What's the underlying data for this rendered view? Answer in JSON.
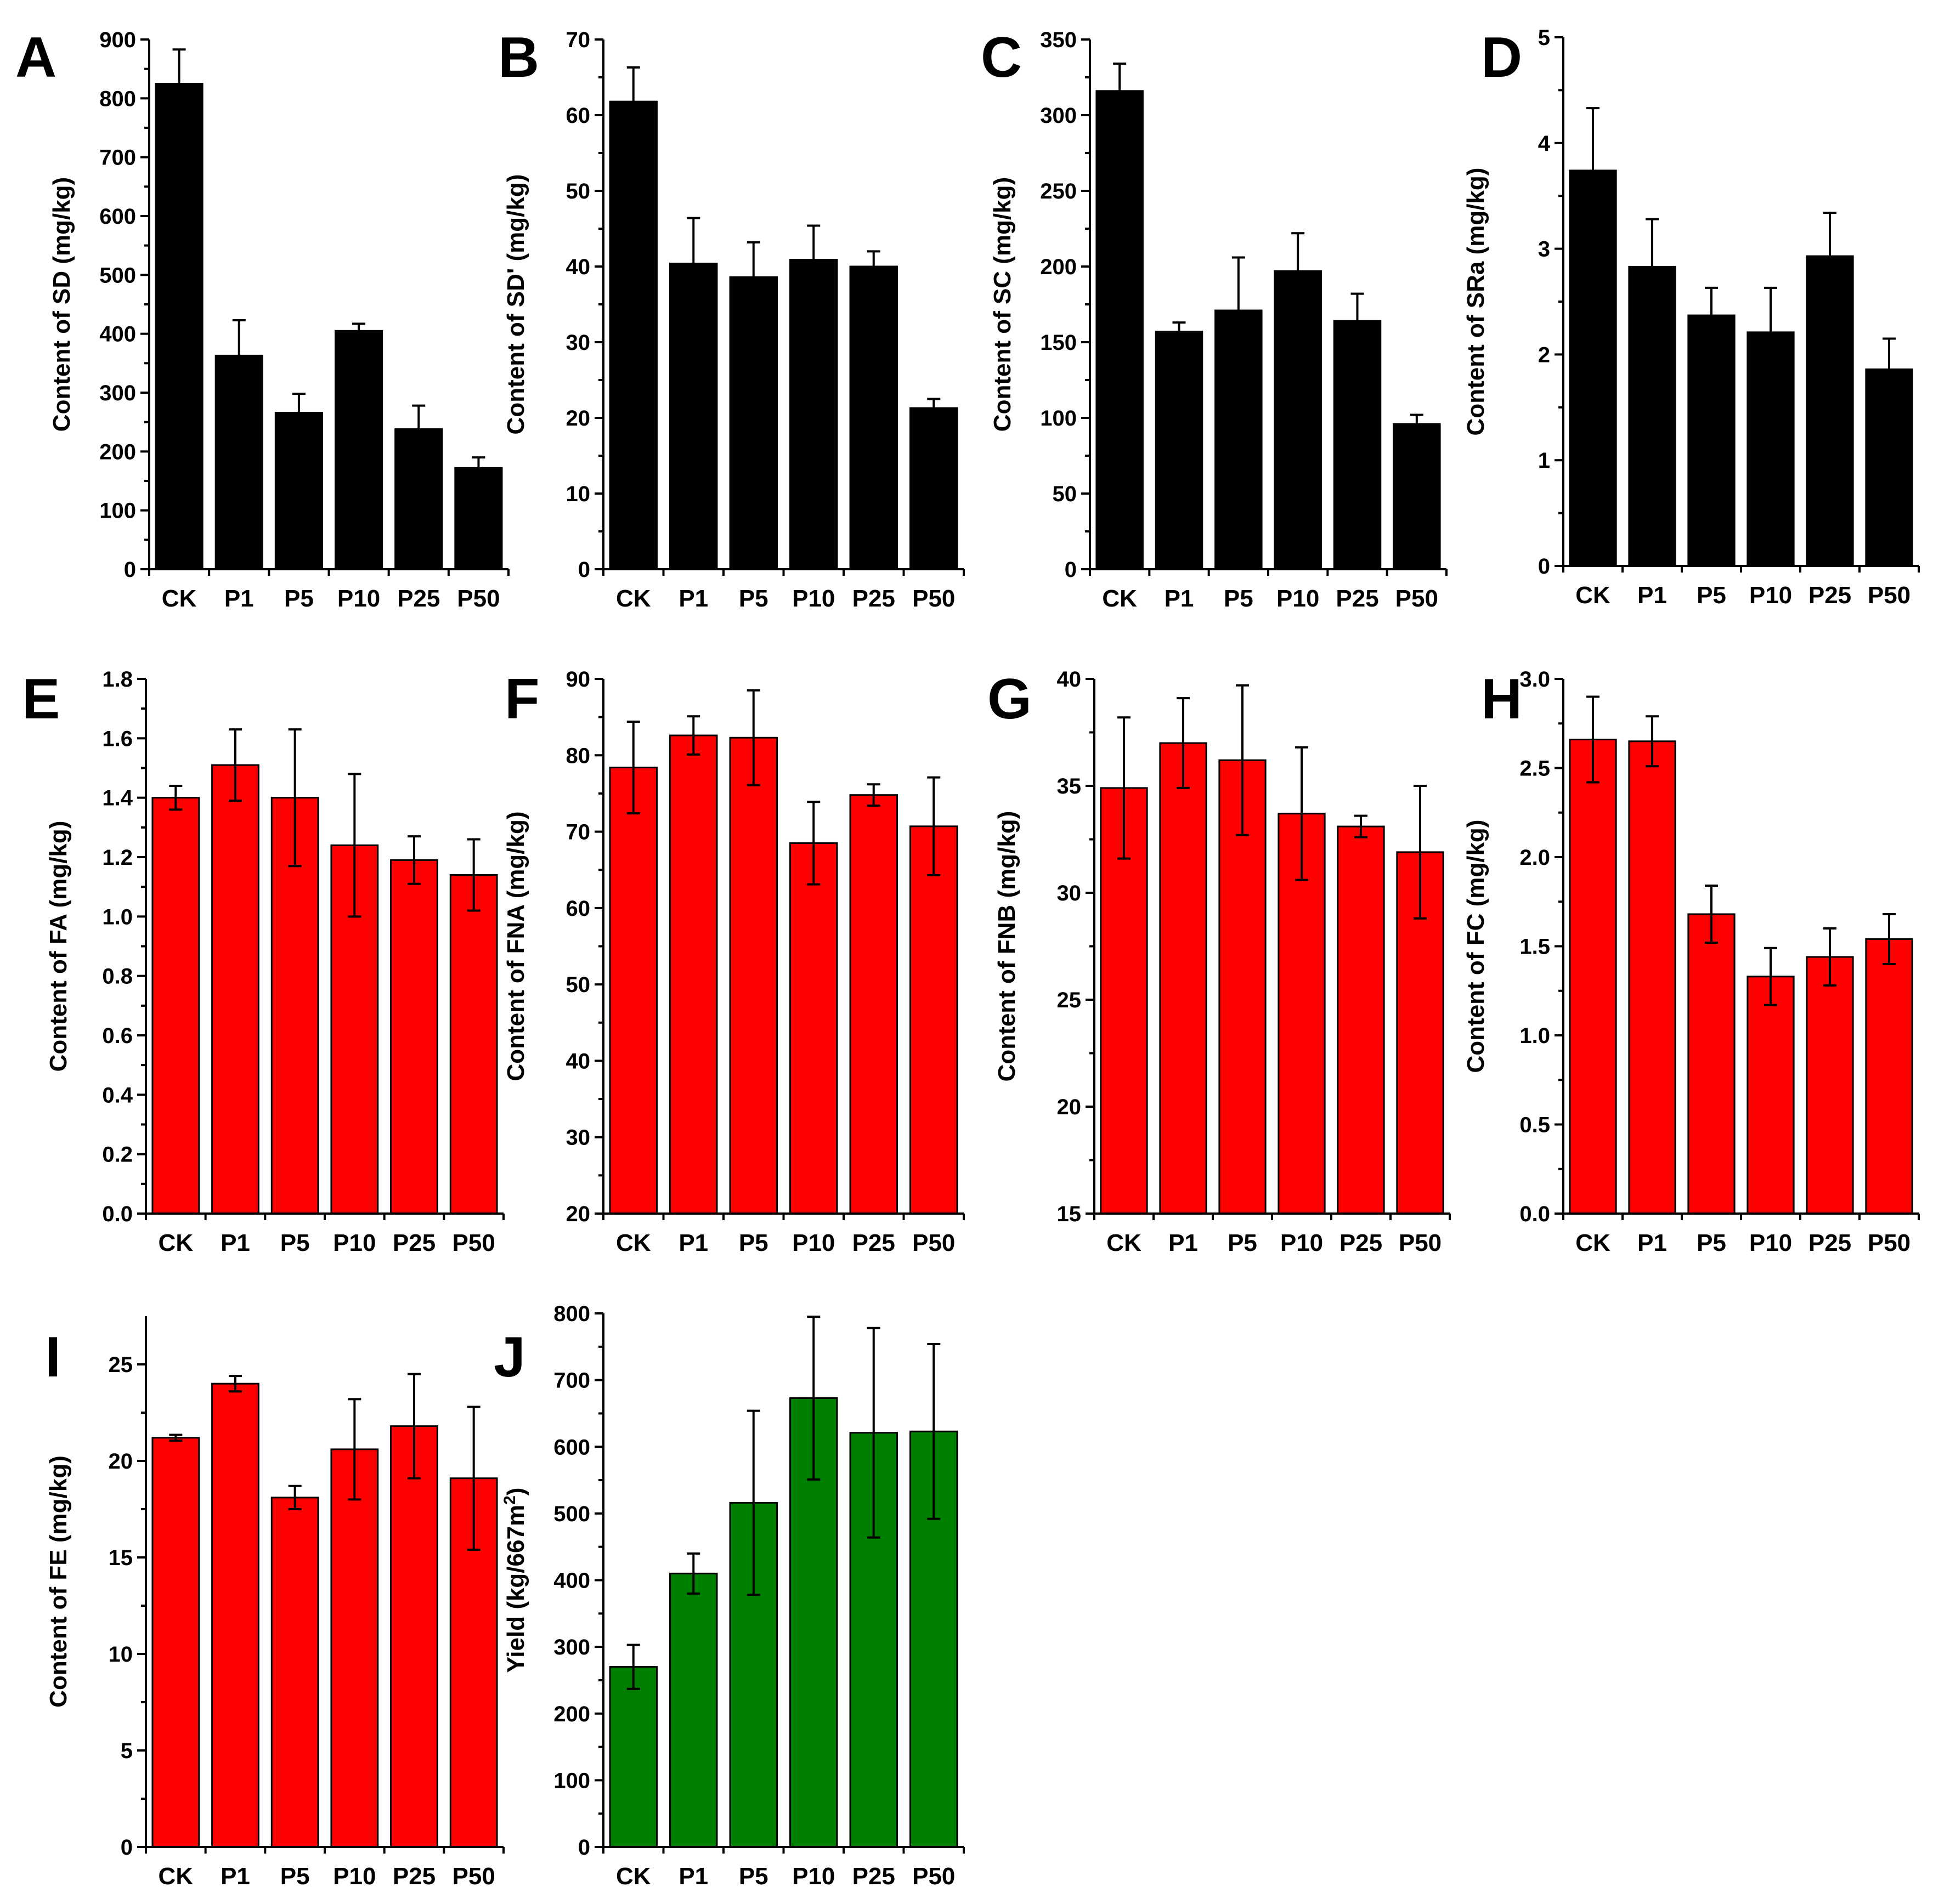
{
  "chart_data": [
    {
      "type": "bar",
      "panel": "A",
      "color": "#000000",
      "ylabel": "Content of SD (mg/kg)",
      "categories": [
        "CK",
        "P1",
        "P5",
        "P10",
        "P25",
        "P50"
      ],
      "values": [
        825,
        363,
        266,
        405,
        238,
        172
      ],
      "errors": [
        58,
        60,
        32,
        12,
        40,
        18
      ],
      "ylim": [
        0,
        900
      ],
      "yticks": [
        "0",
        "100",
        "200",
        "300",
        "400",
        "500",
        "600",
        "700",
        "800",
        "900"
      ]
    },
    {
      "type": "bar",
      "panel": "B",
      "color": "#000000",
      "ylabel": "Content of SD' (mg/kg)",
      "categories": [
        "CK",
        "P1",
        "P5",
        "P10",
        "P25",
        "P50"
      ],
      "values": [
        61.8,
        40.4,
        38.6,
        40.9,
        40.0,
        21.3
      ],
      "errors": [
        4.5,
        6.0,
        4.6,
        4.5,
        2.0,
        1.2
      ],
      "ylim": [
        0,
        70
      ],
      "yticks": [
        "0",
        "10",
        "20",
        "30",
        "40",
        "50",
        "60",
        "70"
      ]
    },
    {
      "type": "bar",
      "panel": "C",
      "color": "#000000",
      "ylabel": "Content of SC (mg/kg)",
      "categories": [
        "CK",
        "P1",
        "P5",
        "P10",
        "P25",
        "P50"
      ],
      "values": [
        316,
        157,
        171,
        197,
        164,
        96
      ],
      "errors": [
        18,
        6,
        35,
        25,
        18,
        6
      ],
      "ylim": [
        0,
        350
      ],
      "yticks": [
        "0",
        "50",
        "100",
        "150",
        "200",
        "250",
        "300",
        "350"
      ]
    },
    {
      "type": "bar",
      "panel": "D",
      "color": "#000000",
      "ylabel": "Content of SRa (mg/kg)",
      "categories": [
        "CK",
        "P1",
        "P5",
        "P10",
        "P25",
        "P50"
      ],
      "values": [
        3.74,
        2.83,
        2.37,
        2.21,
        2.93,
        1.86
      ],
      "errors": [
        0.59,
        0.45,
        0.26,
        0.42,
        0.41,
        0.29
      ],
      "ylim": [
        0,
        5
      ],
      "yticks": [
        "0",
        "1",
        "2",
        "3",
        "4",
        "5"
      ]
    },
    {
      "type": "bar",
      "panel": "E",
      "color": "#ff0000",
      "ylabel": "Content of FA (mg/kg)",
      "categories": [
        "CK",
        "P1",
        "P5",
        "P10",
        "P25",
        "P50"
      ],
      "values": [
        1.4,
        1.51,
        1.4,
        1.24,
        1.19,
        1.14
      ],
      "errors": [
        0.04,
        0.12,
        0.23,
        0.24,
        0.08,
        0.12
      ],
      "ylim": [
        0,
        1.8
      ],
      "yticks": [
        "0.0",
        "0.2",
        "0.4",
        "0.6",
        "0.8",
        "1.0",
        "1.2",
        "1.4",
        "1.6",
        "1.8"
      ]
    },
    {
      "type": "bar",
      "panel": "F",
      "color": "#ff0000",
      "ylabel": "Content of FNA (mg/kg)",
      "categories": [
        "CK",
        "P1",
        "P5",
        "P10",
        "P25",
        "P50"
      ],
      "values": [
        78.4,
        82.6,
        82.3,
        68.5,
        74.8,
        70.7
      ],
      "errors": [
        6.0,
        2.5,
        6.2,
        5.4,
        1.4,
        6.4
      ],
      "ylim": [
        20,
        90
      ],
      "yticks": [
        "20",
        "30",
        "40",
        "50",
        "60",
        "70",
        "80",
        "90"
      ]
    },
    {
      "type": "bar",
      "panel": "G",
      "color": "#ff0000",
      "ylabel": "Content of FNB (mg/kg)",
      "categories": [
        "CK",
        "P1",
        "P5",
        "P10",
        "P25",
        "P50"
      ],
      "values": [
        34.9,
        37.0,
        36.2,
        33.7,
        33.1,
        31.9
      ],
      "errors": [
        3.3,
        2.1,
        3.5,
        3.1,
        0.5,
        3.1
      ],
      "ylim": [
        15,
        40
      ],
      "yticks": [
        "15",
        "20",
        "25",
        "30",
        "35",
        "40"
      ]
    },
    {
      "type": "bar",
      "panel": "H",
      "color": "#ff0000",
      "ylabel": "Content of FC (mg/kg)",
      "categories": [
        "CK",
        "P1",
        "P5",
        "P10",
        "P25",
        "P50"
      ],
      "values": [
        2.66,
        2.65,
        1.68,
        1.33,
        1.44,
        1.54
      ],
      "errors": [
        0.24,
        0.14,
        0.16,
        0.16,
        0.16,
        0.14
      ],
      "ylim": [
        0,
        3
      ],
      "yticks": [
        "0.0",
        "0.5",
        "1.0",
        "1.5",
        "2.0",
        "2.5",
        "3.0"
      ]
    },
    {
      "type": "bar",
      "panel": "I",
      "color": "#ff0000",
      "ylabel": "Content of FE (mg/kg)",
      "categories": [
        "CK",
        "P1",
        "P5",
        "P10",
        "P25",
        "P50"
      ],
      "values": [
        21.2,
        24.0,
        18.1,
        20.6,
        21.8,
        19.1
      ],
      "errors": [
        0.15,
        0.4,
        0.6,
        2.6,
        2.7,
        3.7
      ],
      "ylim": [
        0,
        27.5
      ],
      "yticks": [
        "0",
        "5",
        "10",
        "15",
        "20",
        "25"
      ]
    },
    {
      "type": "bar",
      "panel": "J",
      "color": "#008000",
      "ylabel": "Yield (kg/667m",
      "ylabel_sup": "2",
      "ylabel_end": ")",
      "categories": [
        "CK",
        "P1",
        "P5",
        "P10",
        "P25",
        "P50"
      ],
      "values": [
        270,
        410,
        516,
        673,
        621,
        623
      ],
      "errors": [
        33,
        30,
        138,
        122,
        157,
        131
      ],
      "ylim": [
        0,
        800
      ],
      "yticks": [
        "0",
        "100",
        "200",
        "300",
        "400",
        "500",
        "600",
        "700",
        "800"
      ]
    }
  ]
}
